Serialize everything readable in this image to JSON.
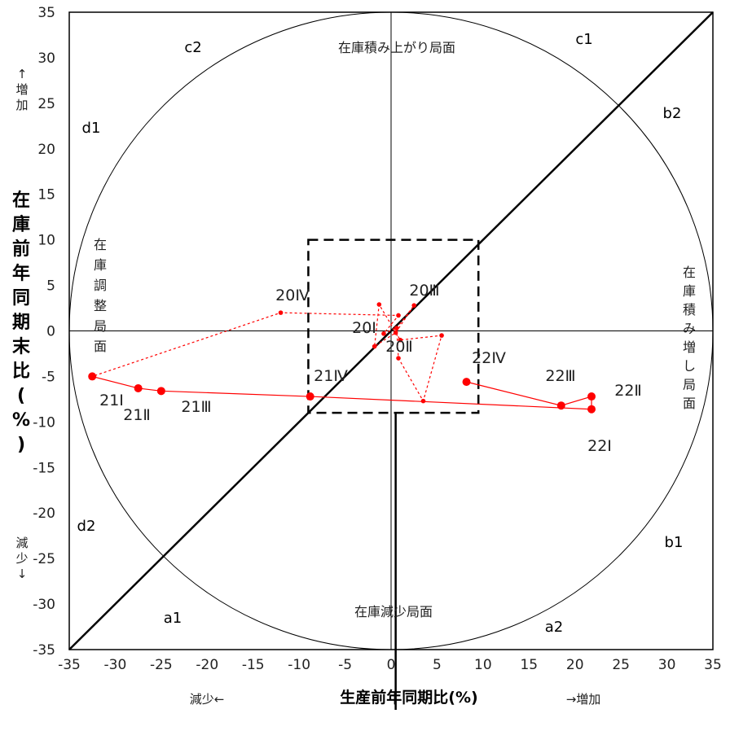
{
  "chart_data": {
    "type": "scatter",
    "xlabel": "生産前年同期比(%)",
    "ylabel": "在庫前年同期末比(%)",
    "xlim": [
      -35,
      35
    ],
    "ylim": [
      -35,
      35
    ],
    "x_ticks": [
      "-35",
      "-30",
      "-25",
      "-20",
      "-15",
      "-10",
      "-5",
      "0",
      "5",
      "10",
      "15",
      "20",
      "25",
      "30",
      "35"
    ],
    "y_ticks": [
      "35",
      "30",
      "25",
      "20",
      "15",
      "10",
      "5",
      "0",
      "-5",
      "-10",
      "-15",
      "-20",
      "-25",
      "-30",
      "-35"
    ],
    "x_dir_left": "減少←",
    "x_dir_right": "→増加",
    "y_dir_up": "↑増加",
    "y_dir_down": "減少↓",
    "corner_labels": [
      "c2",
      "c1",
      "d1",
      "b2",
      "d2",
      "b1",
      "a1",
      "a2"
    ],
    "phase_labels": {
      "top": "在庫積み上がり局面",
      "bottom": "在庫減少局面",
      "left": "在庫調整局面",
      "right": "在庫積み増し局面"
    },
    "series": [
      {
        "style": "dotted",
        "color": "#ff0000",
        "points": [
          {
            "x": 0.6,
            "y": 0.3
          },
          {
            "x": 2.5,
            "y": 2.8
          },
          {
            "x": 0.5,
            "y": -0.2
          },
          {
            "x": -1.8,
            "y": -1.7
          },
          {
            "x": -1.3,
            "y": 2.9
          },
          {
            "x": 1.0,
            "y": -1.0
          },
          {
            "x": 5.5,
            "y": -0.5
          },
          {
            "x": 3.5,
            "y": -7.7
          },
          {
            "x": 0.8,
            "y": -3.0
          },
          {
            "x": 0.6,
            "y": 0.3
          },
          {
            "x": -0.8,
            "y": -0.3
          },
          {
            "x": 0.8,
            "y": 1.7
          },
          {
            "x": -12.0,
            "y": 2.0
          },
          {
            "x": -32.5,
            "y": -5.0
          }
        ],
        "labels": [
          {
            "text": "20Ⅰ",
            "x": -1.5,
            "y": 0
          },
          {
            "text": "20Ⅱ",
            "x": -0.5,
            "y": -1.8
          },
          {
            "text": "20Ⅲ",
            "x": 3.3,
            "y": 4.5
          },
          {
            "text": "20Ⅳ",
            "x": -11.5,
            "y": 3.7
          }
        ]
      },
      {
        "style": "solid",
        "color": "#ff0000",
        "points": [
          {
            "x": -32.5,
            "y": -5.0,
            "label": "21Ⅰ"
          },
          {
            "x": -27.5,
            "y": -6.3,
            "label": "21Ⅱ"
          },
          {
            "x": -25.0,
            "y": -6.6,
            "label": "21Ⅲ"
          },
          {
            "x": -8.8,
            "y": -7.2,
            "label": "21Ⅳ"
          },
          {
            "x": 21.8,
            "y": -8.6,
            "label": "22Ⅰ"
          },
          {
            "x": 21.8,
            "y": -7.2,
            "label": "22Ⅱ"
          },
          {
            "x": 18.5,
            "y": -8.2,
            "label": "22Ⅲ"
          },
          {
            "x": 8.2,
            "y": -5.6,
            "label": "22Ⅳ"
          }
        ]
      }
    ],
    "reference_box": {
      "x": [
        -9,
        9.5
      ],
      "y": [
        -9,
        10
      ]
    },
    "diagonal": [
      [
        -35,
        -35
      ],
      [
        35,
        35
      ]
    ],
    "circle_radius": 35
  }
}
